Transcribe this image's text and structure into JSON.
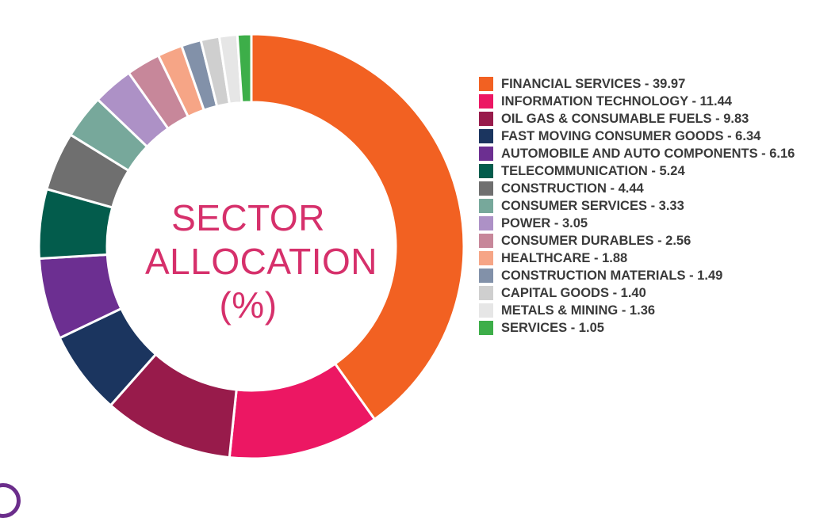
{
  "chart_data": {
    "type": "pie",
    "donut": true,
    "title": [
      "SECTOR",
      "ALLOCATION",
      "(%)"
    ],
    "slices": [
      {
        "label": "FINANCIAL SERVICES - 39.97",
        "value": 39.97,
        "color": "#f26122"
      },
      {
        "label": "INFORMATION TECHNOLOGY - 11.44",
        "value": 11.44,
        "color": "#ec1763"
      },
      {
        "label": "OIL GAS & CONSUMABLE FUELS - 9.83",
        "value": 9.83,
        "color": "#981b4b"
      },
      {
        "label": "FAST MOVING CONSUMER GOODS - 6.34",
        "value": 6.34,
        "color": "#1b355f"
      },
      {
        "label": "AUTOMOBILE AND AUTO COMPONENTS - 6.16",
        "value": 6.16,
        "color": "#6c2f91"
      },
      {
        "label": "TELECOMMUNICATION - 5.24",
        "value": 5.24,
        "color": "#035c4c"
      },
      {
        "label": "CONSTRUCTION - 4.44",
        "value": 4.44,
        "color": "#6f6f6f"
      },
      {
        "label": "CONSUMER SERVICES - 3.33",
        "value": 3.33,
        "color": "#77a89b"
      },
      {
        "label": "POWER - 3.05",
        "value": 3.05,
        "color": "#ad91c6"
      },
      {
        "label": "CONSUMER DURABLES - 2.56",
        "value": 2.56,
        "color": "#c7879a"
      },
      {
        "label": "HEALTHCARE - 1.88",
        "value": 1.88,
        "color": "#f6a586"
      },
      {
        "label": "CONSTRUCTION MATERIALS - 1.49",
        "value": 1.49,
        "color": "#8291a9"
      },
      {
        "label": "CAPITAL GOODS - 1.40",
        "value": 1.4,
        "color": "#cfcfcf"
      },
      {
        "label": "METALS & MINING - 1.36",
        "value": 1.36,
        "color": "#e6e6e6"
      },
      {
        "label": "SERVICES - 1.05",
        "value": 1.05,
        "color": "#3dae49"
      }
    ]
  }
}
